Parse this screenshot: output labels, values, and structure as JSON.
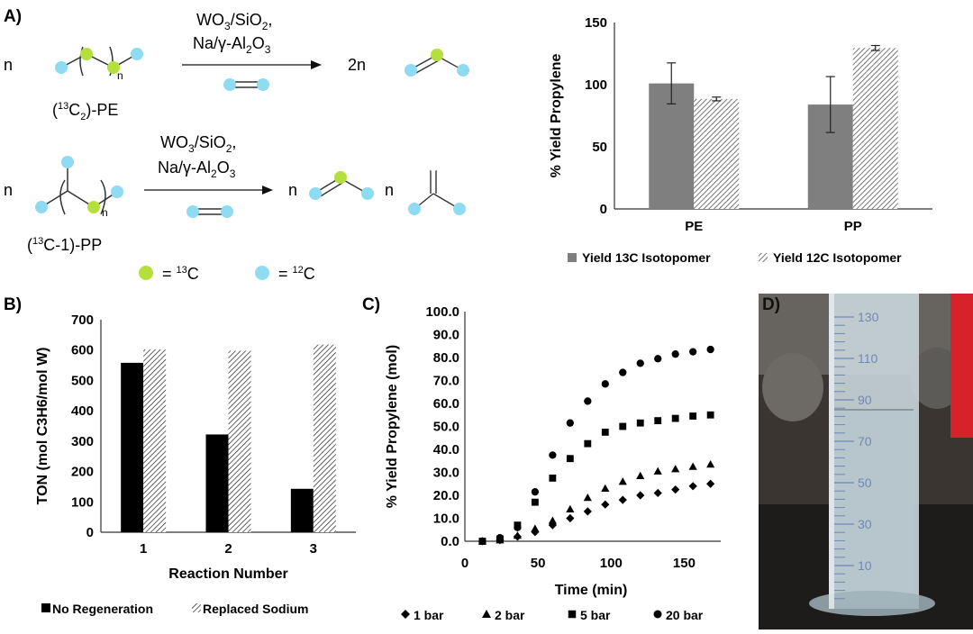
{
  "panels": {
    "a": "A)",
    "b": "B)",
    "c": "C)",
    "d": "D)"
  },
  "scheme": {
    "n1": "n",
    "n2": "n",
    "n3": "n",
    "n4": "n",
    "two_n": "2n",
    "reaction1_catalyst_line1": "WO3/SiO2,",
    "reaction1_catalyst_line2": "Na/γ-Al2O3",
    "reaction2_catalyst_line1": "WO3/SiO2,",
    "reaction2_catalyst_line2": "Na/γ-Al2O3",
    "pe_label": "(13C2)-PE",
    "pp_label": "(13C-1)-PP",
    "subscript_n": "n",
    "legend_13c": "= 13C",
    "legend_12c": "= 12C",
    "colors": {
      "c13": "#b5e03c",
      "c12": "#8fdcf2"
    }
  },
  "chart_data": [
    {
      "type": "bar",
      "ylabel": "% Yield Propylene",
      "ylim": [
        0,
        150
      ],
      "yticks": [
        0,
        50,
        100,
        150
      ],
      "categories": [
        "PE",
        "PP"
      ],
      "series": [
        {
          "name": "Yield 13C Isotopomer",
          "values": [
            101,
            84
          ],
          "errors": [
            16.5,
            22.5
          ],
          "pattern": "solid",
          "color": "#7f7f7f"
        },
        {
          "name": "Yield 12C Isotopomer",
          "values": [
            88.5,
            129.5
          ],
          "errors": [
            1.5,
            2
          ],
          "pattern": "hatch",
          "color": "#7f7f7f"
        }
      ],
      "legend": "bottom"
    },
    {
      "type": "bar",
      "xlabel": "Reaction Number",
      "ylabel": "TON (mol C3H6/mol W)",
      "ylim": [
        0,
        700
      ],
      "yticks": [
        0,
        100,
        200,
        300,
        400,
        500,
        600,
        700
      ],
      "categories": [
        "1",
        "2",
        "3"
      ],
      "series": [
        {
          "name": "No Regeneration",
          "values": [
            558,
            322,
            143
          ],
          "pattern": "solid",
          "color": "#000000"
        },
        {
          "name": "Replaced Sodium",
          "values": [
            602,
            598,
            618
          ],
          "pattern": "hatch",
          "color": "#000000"
        }
      ],
      "legend": "bottom"
    },
    {
      "type": "scatter",
      "xlabel": "Time (min)",
      "ylabel": "% Yield Propylene (mol)",
      "xlim": [
        0,
        175
      ],
      "ylim": [
        0,
        100
      ],
      "xticks": [
        0,
        50,
        100,
        150
      ],
      "yticks": [
        "0.0",
        "10.0",
        "20.0",
        "30.0",
        "40.0",
        "50.0",
        "60.0",
        "70.0",
        "80.0",
        "90.0",
        "100.0"
      ],
      "x": [
        12,
        24,
        36,
        48,
        60,
        72,
        84,
        96,
        108,
        120,
        132,
        144,
        156,
        168
      ],
      "series": [
        {
          "name": "1 bar",
          "marker": "diamond",
          "values": [
            0,
            0.5,
            2,
            4,
            7,
            10,
            13,
            16,
            18,
            20,
            21,
            22.5,
            24,
            25
          ]
        },
        {
          "name": "2 bar",
          "marker": "triangle",
          "values": [
            0,
            0.5,
            2.5,
            5.5,
            9,
            14,
            19,
            23,
            26,
            28.5,
            30.5,
            31.5,
            32.5,
            33.5
          ]
        },
        {
          "name": "5 bar",
          "marker": "square",
          "values": [
            0,
            1,
            7,
            17,
            27.5,
            36,
            42.5,
            47.5,
            50,
            51.5,
            52.5,
            53.5,
            54.5,
            55
          ]
        },
        {
          "name": "20 bar",
          "marker": "circle",
          "values": [
            0,
            1.5,
            6,
            21.5,
            37.5,
            51.5,
            61,
            68.5,
            73.5,
            77.5,
            79.5,
            81.5,
            82.5,
            83.5
          ]
        }
      ],
      "legend": "bottom"
    }
  ],
  "photo": {
    "scale_labels": [
      "130",
      "110",
      "90",
      "70",
      "50",
      "30",
      "10"
    ],
    "colors": {
      "background": "#3a3530",
      "glass": "#c9d6dc",
      "liquid": "#b7c6cc",
      "scale": "#6f88b8",
      "red": "#d8222a"
    }
  }
}
